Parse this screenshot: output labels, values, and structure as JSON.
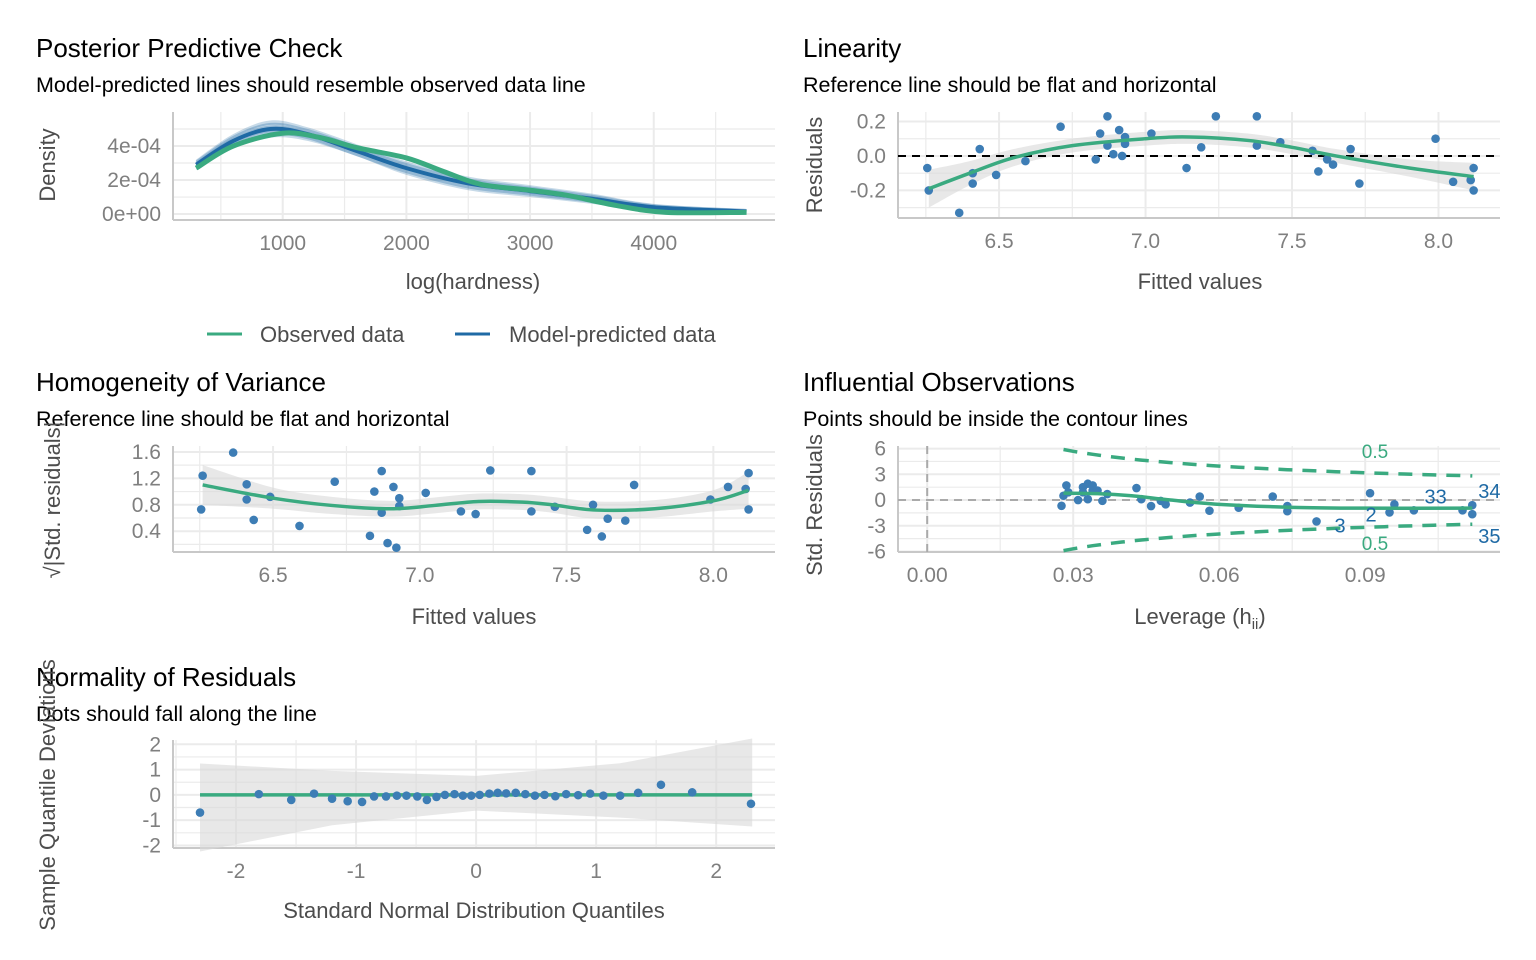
{
  "colors": {
    "observed": "#3aaa80",
    "predicted": "#1f6aa5",
    "points": "#3d7db5",
    "smooth": "#3aaa80",
    "ci_band": "#d9d9d9",
    "grid": "#ebebeb",
    "axis": "#c8c8c8"
  },
  "panels": {
    "ppc": {
      "title": "Posterior Predictive Check",
      "subtitle": "Model-predicted lines should resemble observed data line",
      "xlabel": "log(hardness)",
      "ylabel": "Density",
      "legend": {
        "observed": "Observed data",
        "predicted": "Model-predicted data",
        "placement": "bottom"
      }
    },
    "linearity": {
      "title": "Linearity",
      "subtitle": "Reference line should be flat and horizontal",
      "xlabel": "Fitted values",
      "ylabel": "Residuals"
    },
    "homogeneity": {
      "title": "Homogeneity of Variance",
      "subtitle": "Reference line should be flat and horizontal",
      "xlabel": "Fitted values",
      "ylabel": "√|Std. residuals|"
    },
    "influential": {
      "title": "Influential Observations",
      "subtitle": "Points should be inside the contour lines",
      "xlabel": "Leverage (h",
      "xlabel_sub": "ii",
      "xlabel_end": ")",
      "ylabel": "Std. Residuals"
    },
    "normality": {
      "title": "Normality of Residuals",
      "subtitle": "Dots should fall along the line",
      "xlabel": "Standard Normal Distribution Quantiles",
      "ylabel": "Sample Quantile Deviations"
    }
  },
  "chart_data": [
    {
      "id": "ppc",
      "type": "line",
      "xlim": [
        113,
        4980
      ],
      "ylim": [
        -3.5e-05,
        0.0006
      ],
      "xticks": [
        1000,
        2000,
        3000,
        4000
      ],
      "xtick_labels": [
        "1000",
        "2000",
        "3000",
        "4000"
      ],
      "yticks": [
        0,
        0.0002,
        0.0004
      ],
      "ytick_labels": [
        "0e+00",
        "2e-04",
        "4e-04"
      ],
      "series": [
        {
          "name": "Observed data",
          "x": [
            300,
            600,
            1000,
            1300,
            1600,
            2000,
            2300,
            2600,
            3000,
            3300,
            3700,
            4100,
            4750
          ],
          "y": [
            0.00027,
            0.0004,
            0.000475,
            0.00045,
            0.00039,
            0.00033,
            0.00025,
            0.000175,
            0.00014,
            0.00011,
            5e-05,
            1e-05,
            1e-05
          ]
        },
        {
          "name": "Model-predicted data",
          "x": [
            300,
            600,
            900,
            1200,
            1600,
            2000,
            2500,
            3000,
            3500,
            4000,
            4750
          ],
          "y": [
            0.00029,
            0.00043,
            0.0005,
            0.00047,
            0.00037,
            0.00027,
            0.00018,
            0.000135,
            9e-05,
            4e-05,
            1.5e-05
          ],
          "lower": [
            0.00026,
            0.00039,
            0.00045,
            0.00043,
            0.00034,
            0.00023,
            0.00014,
            0.0001,
            6e-05,
            2e-05,
            5e-06
          ],
          "upper": [
            0.00032,
            0.00047,
            0.00055,
            0.00051,
            0.00041,
            0.00031,
            0.00022,
            0.00017,
            0.00012,
            6e-05,
            3e-05
          ]
        }
      ]
    },
    {
      "id": "linearity",
      "type": "scatter",
      "xlim": [
        6.155,
        8.21
      ],
      "ylim": [
        -0.36,
        0.255
      ],
      "xticks": [
        6.5,
        7.0,
        7.5,
        8.0
      ],
      "xtick_labels": [
        "6.5",
        "7.0",
        "7.5",
        "8.0"
      ],
      "yticks": [
        -0.2,
        0.0,
        0.2
      ],
      "ytick_labels": [
        "-0.2",
        "0.0",
        "0.2"
      ],
      "reference_line": 0,
      "points": {
        "x": [
          6.255,
          6.26,
          6.364,
          6.41,
          6.41,
          6.434,
          6.49,
          6.59,
          6.71,
          6.83,
          6.845,
          6.87,
          6.87,
          6.89,
          6.91,
          6.92,
          6.93,
          6.93,
          7.02,
          7.14,
          7.19,
          7.24,
          7.38,
          7.38,
          7.46,
          7.57,
          7.59,
          7.62,
          7.64,
          7.7,
          7.73,
          7.99,
          8.05,
          8.11,
          8.12,
          8.12
        ],
        "y": [
          -0.07,
          -0.2,
          -0.33,
          -0.1,
          -0.16,
          0.04,
          -0.11,
          -0.03,
          0.17,
          -0.02,
          0.13,
          0.06,
          0.23,
          0.01,
          0.15,
          0.0,
          0.11,
          0.07,
          0.13,
          -0.07,
          0.05,
          0.23,
          0.23,
          0.06,
          0.08,
          0.03,
          -0.09,
          -0.02,
          -0.05,
          0.04,
          -0.16,
          0.1,
          -0.15,
          -0.14,
          -0.07,
          -0.2
        ]
      },
      "smooth": {
        "x": [
          6.26,
          6.4,
          6.55,
          6.75,
          7.0,
          7.15,
          7.35,
          7.5,
          7.65,
          7.9,
          8.12
        ],
        "y": [
          -0.19,
          -0.1,
          -0.01,
          0.06,
          0.1,
          0.11,
          0.09,
          0.05,
          0.0,
          -0.07,
          -0.12
        ],
        "ci": [
          0.11,
          0.07,
          0.05,
          0.04,
          0.04,
          0.04,
          0.04,
          0.04,
          0.04,
          0.05,
          0.08
        ]
      }
    },
    {
      "id": "homogeneity",
      "type": "scatter",
      "xlim": [
        6.159,
        8.21
      ],
      "ylim": [
        0.085,
        1.69
      ],
      "xticks": [
        6.5,
        7.0,
        7.5,
        8.0
      ],
      "xtick_labels": [
        "6.5",
        "7.0",
        "7.5",
        "8.0"
      ],
      "yticks": [
        0.4,
        0.8,
        1.2,
        1.6
      ],
      "ytick_labels": [
        "0.4",
        "0.8",
        "1.2",
        "1.6"
      ],
      "points": {
        "x": [
          6.255,
          6.26,
          6.364,
          6.41,
          6.41,
          6.434,
          6.49,
          6.59,
          6.71,
          6.83,
          6.845,
          6.87,
          6.87,
          6.89,
          6.91,
          6.92,
          6.93,
          6.93,
          7.02,
          7.14,
          7.19,
          7.24,
          7.38,
          7.38,
          7.46,
          7.57,
          7.59,
          7.62,
          7.64,
          7.7,
          7.73,
          7.99,
          8.05,
          8.11,
          8.12,
          8.12
        ],
        "y": [
          0.73,
          1.24,
          1.59,
          0.88,
          1.11,
          0.57,
          0.92,
          0.48,
          1.15,
          0.33,
          1.0,
          0.68,
          1.31,
          0.22,
          1.07,
          0.15,
          0.9,
          0.78,
          0.98,
          0.7,
          0.66,
          1.32,
          1.31,
          0.7,
          0.77,
          0.42,
          0.8,
          0.32,
          0.59,
          0.56,
          1.1,
          0.88,
          1.07,
          1.04,
          0.73,
          1.28
        ]
      },
      "smooth": {
        "x": [
          6.26,
          6.5,
          6.7,
          6.9,
          7.05,
          7.2,
          7.35,
          7.45,
          7.6,
          7.8,
          8.0,
          8.12
        ],
        "y": [
          1.1,
          0.9,
          0.79,
          0.74,
          0.79,
          0.85,
          0.84,
          0.8,
          0.72,
          0.74,
          0.86,
          1.02
        ],
        "ci": [
          0.3,
          0.16,
          0.13,
          0.12,
          0.12,
          0.12,
          0.12,
          0.12,
          0.13,
          0.13,
          0.16,
          0.28
        ]
      }
    },
    {
      "id": "influential",
      "type": "scatter",
      "xlim": [
        -0.006,
        0.1177
      ],
      "ylim": [
        -6.06,
        6.3
      ],
      "xticks": [
        0.0,
        0.03,
        0.06,
        0.09
      ],
      "xtick_labels": [
        "0.00",
        "0.03",
        "0.06",
        "0.09"
      ],
      "yticks": [
        -6,
        -3,
        0,
        3,
        6
      ],
      "ytick_labels": [
        "-6",
        "-3",
        "0",
        "3",
        "6"
      ],
      "cook_contour": {
        "level": 0.5,
        "label": "0.5",
        "leverage_range": [
          0.028,
          0.112
        ]
      },
      "points": {
        "x": [
          0.0276,
          0.028,
          0.0286,
          0.029,
          0.031,
          0.032,
          0.032,
          0.033,
          0.033,
          0.034,
          0.034,
          0.035,
          0.036,
          0.037,
          0.043,
          0.044,
          0.046,
          0.048,
          0.049,
          0.054,
          0.056,
          0.058,
          0.064,
          0.071,
          0.074,
          0.074,
          0.08,
          0.091,
          0.095,
          0.096,
          0.1,
          0.11,
          0.112,
          0.112
        ],
        "y": [
          -0.67,
          0.5,
          1.7,
          0.9,
          0.0,
          0.9,
          1.5,
          1.9,
          0.1,
          1.1,
          1.7,
          1.1,
          -0.1,
          0.7,
          1.4,
          0.1,
          -0.7,
          -0.1,
          -0.5,
          -0.3,
          0.4,
          -1.25,
          -0.9,
          0.4,
          -0.7,
          -1.3,
          -2.5,
          0.8,
          -1.45,
          -0.5,
          -1.2,
          -1.2,
          -0.6,
          -1.65
        ]
      },
      "labeled_points": [
        {
          "label": "3",
          "x": 0.08,
          "y": -2.5
        },
        {
          "label": "2",
          "x": 0.095,
          "y": -1.45
        },
        {
          "label": "33",
          "x": 0.11,
          "y": -1.2
        },
        {
          "label": "34",
          "x": 0.112,
          "y": -0.6
        },
        {
          "label": "35",
          "x": 0.112,
          "y": -1.65
        }
      ],
      "smooth": {
        "x": [
          0.028,
          0.035,
          0.042,
          0.05,
          0.06,
          0.075,
          0.09,
          0.112
        ],
        "y": [
          0.8,
          0.75,
          0.5,
          0.0,
          -0.5,
          -0.85,
          -0.95,
          -0.95
        ]
      }
    },
    {
      "id": "normality",
      "type": "scatter",
      "xlim": [
        -2.525,
        2.49
      ],
      "ylim": [
        -2.1,
        2.17
      ],
      "xticks": [
        -2,
        -1,
        0,
        1,
        2
      ],
      "xtick_labels": [
        "-2",
        "-1",
        "0",
        "1",
        "2"
      ],
      "yticks": [
        -2,
        -1,
        0,
        1,
        2
      ],
      "ytick_labels": [
        "-2",
        "-1",
        "0",
        "1",
        "2"
      ],
      "reference_line": 0,
      "band": {
        "x": [
          -2.3,
          -1.2,
          0,
          1.2,
          2.3
        ],
        "upper": [
          1.24,
          0.95,
          0.75,
          1.25,
          2.23
        ],
        "lower": [
          -2.24,
          -1.2,
          -0.62,
          -0.9,
          -1.25
        ]
      },
      "points": {
        "x": [
          -2.3,
          -1.81,
          -1.54,
          -1.35,
          -1.2,
          -1.07,
          -0.95,
          -0.85,
          -0.75,
          -0.66,
          -0.58,
          -0.49,
          -0.41,
          -0.33,
          -0.26,
          -0.18,
          -0.11,
          -0.04,
          0.03,
          0.11,
          0.18,
          0.25,
          0.33,
          0.41,
          0.49,
          0.57,
          0.66,
          0.75,
          0.85,
          0.95,
          1.06,
          1.2,
          1.35,
          1.54,
          1.8,
          2.29
        ],
        "y": [
          -0.7,
          0.03,
          -0.2,
          0.05,
          -0.15,
          -0.25,
          -0.28,
          -0.06,
          -0.06,
          -0.03,
          -0.03,
          -0.06,
          -0.2,
          -0.08,
          0.0,
          0.03,
          -0.03,
          -0.03,
          0.0,
          0.05,
          0.08,
          0.06,
          0.08,
          0.03,
          -0.03,
          0.0,
          -0.05,
          0.03,
          -0.01,
          0.05,
          -0.03,
          -0.03,
          0.08,
          0.4,
          0.1,
          -0.35
        ]
      }
    }
  ]
}
